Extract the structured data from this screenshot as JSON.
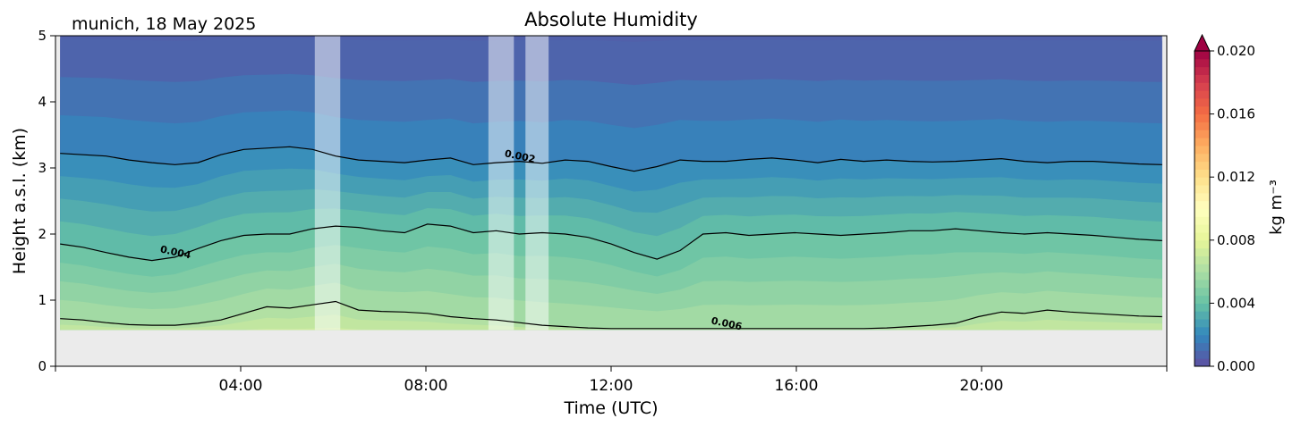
{
  "chart_data": {
    "type": "heatmap",
    "title": "Absolute Humidity",
    "location_label": "munich, 18 May 2025",
    "xlabel": "Time (UTC)",
    "ylabel": "Height a.s.l. (km)",
    "xlim_hours": [
      0,
      24
    ],
    "xticks": [
      {
        "hour": 4,
        "label": "04:00"
      },
      {
        "hour": 8,
        "label": "08:00"
      },
      {
        "hour": 12,
        "label": "12:00"
      },
      {
        "hour": 16,
        "label": "16:00"
      },
      {
        "hour": 20,
        "label": "20:00"
      }
    ],
    "ylim_km": [
      0,
      5
    ],
    "yticks": [
      {
        "value": 0,
        "label": "0"
      },
      {
        "value": 1,
        "label": "1"
      },
      {
        "value": 2,
        "label": "2"
      },
      {
        "value": 3,
        "label": "3"
      },
      {
        "value": 4,
        "label": "4"
      },
      {
        "value": 5,
        "label": "5"
      }
    ],
    "data_floor_km": 0.55,
    "data_hours": [
      0.1,
      23.9
    ],
    "masked_intervals_hours": [
      [
        5.6,
        6.15
      ],
      [
        9.35,
        9.9
      ],
      [
        10.15,
        10.65
      ]
    ],
    "colorbar": {
      "label": "kg m⁻³",
      "range": [
        0.0,
        0.02
      ],
      "extend": "max",
      "ticks": [
        {
          "value": 0.0,
          "label": "0.000"
        },
        {
          "value": 0.004,
          "label": "0.004"
        },
        {
          "value": 0.008,
          "label": "0.008"
        },
        {
          "value": 0.012,
          "label": "0.012"
        },
        {
          "value": 0.016,
          "label": "0.016"
        },
        {
          "value": 0.02,
          "label": "0.020"
        }
      ]
    },
    "contours": [
      {
        "level": 0.002,
        "label": "0.002",
        "heights_km": [
          3.22,
          3.2,
          3.18,
          3.12,
          3.08,
          3.05,
          3.08,
          3.2,
          3.28,
          3.3,
          3.32,
          3.28,
          3.18,
          3.12,
          3.1,
          3.08,
          3.12,
          3.15,
          3.05,
          3.08,
          3.1,
          3.07,
          3.12,
          3.1,
          3.02,
          2.95,
          3.02,
          3.12,
          3.1,
          3.1,
          3.13,
          3.15,
          3.12,
          3.08,
          3.13,
          3.1,
          3.12,
          3.1,
          3.09,
          3.1,
          3.12,
          3.14,
          3.1,
          3.08,
          3.1,
          3.1,
          3.08,
          3.06,
          3.05
        ]
      },
      {
        "level": 0.004,
        "label": "0.004",
        "heights_km": [
          1.85,
          1.8,
          1.72,
          1.65,
          1.6,
          1.65,
          1.78,
          1.9,
          1.98,
          2.0,
          2.0,
          2.08,
          2.12,
          2.1,
          2.05,
          2.02,
          2.15,
          2.12,
          2.02,
          2.05,
          2.0,
          2.02,
          2.0,
          1.95,
          1.85,
          1.72,
          1.62,
          1.75,
          2.0,
          2.02,
          1.98,
          2.0,
          2.02,
          2.0,
          1.98,
          2.0,
          2.02,
          2.05,
          2.05,
          2.08,
          2.05,
          2.02,
          2.0,
          2.02,
          2.0,
          1.98,
          1.95,
          1.92,
          1.9
        ]
      },
      {
        "level": 0.006,
        "label": "0.006",
        "heights_km": [
          0.72,
          0.7,
          0.66,
          0.63,
          0.62,
          0.62,
          0.65,
          0.7,
          0.8,
          0.9,
          0.88,
          0.93,
          0.98,
          0.85,
          0.83,
          0.82,
          0.8,
          0.75,
          0.72,
          0.7,
          0.66,
          0.62,
          0.6,
          0.58,
          0.57,
          0.57,
          0.57,
          0.57,
          0.57,
          0.57,
          0.57,
          0.57,
          0.57,
          0.57,
          0.57,
          0.57,
          0.58,
          0.6,
          0.62,
          0.65,
          0.75,
          0.82,
          0.8,
          0.85,
          0.82,
          0.8,
          0.78,
          0.76,
          0.75
        ]
      }
    ]
  }
}
